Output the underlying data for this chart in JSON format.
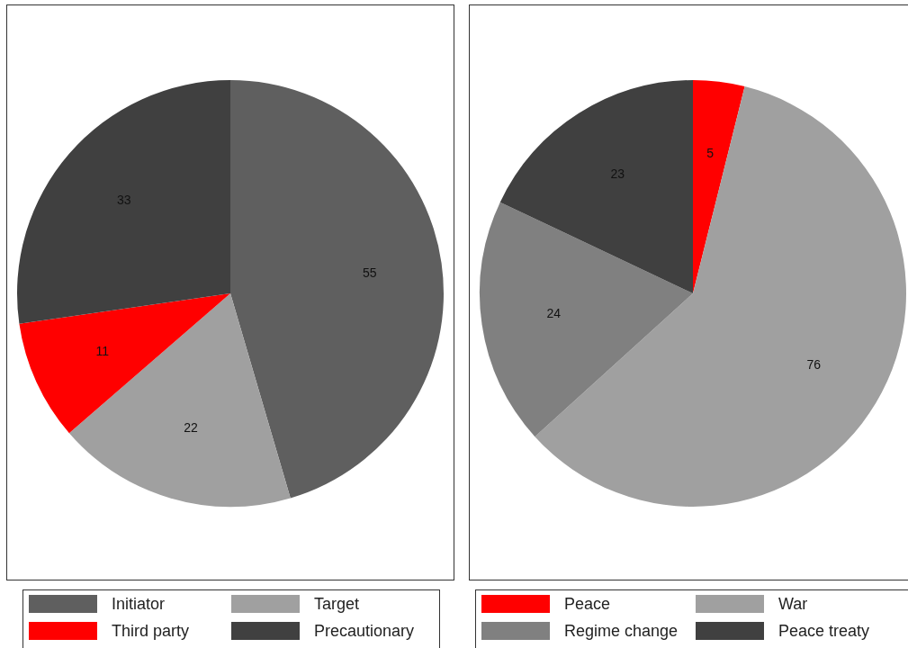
{
  "chart_data": [
    {
      "type": "pie",
      "categories": [
        "Initiator",
        "Target",
        "Third party",
        "Precautionary"
      ],
      "values": [
        55,
        22,
        11,
        33
      ],
      "colors": [
        "#5f5f5f",
        "#a0a0a0",
        "#ff0000",
        "#404040"
      ],
      "data_labels": true,
      "legend": "bottom"
    },
    {
      "type": "pie",
      "categories": [
        "Peace",
        "War",
        "Regime change",
        "Peace treaty"
      ],
      "values": [
        5,
        76,
        24,
        23
      ],
      "colors": [
        "#ff0000",
        "#a0a0a0",
        "#808080",
        "#404040"
      ],
      "data_labels": true,
      "legend": "bottom"
    }
  ]
}
